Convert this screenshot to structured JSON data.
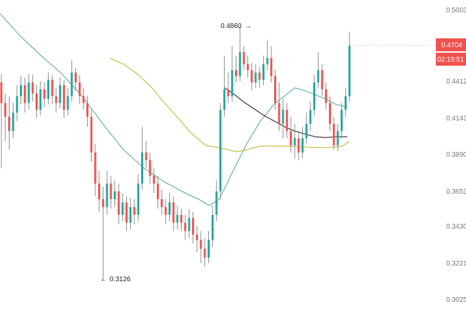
{
  "chart_data": {
    "type": "candlestick",
    "title": "",
    "xlabel": "",
    "ylabel": "",
    "y_ticks": [
      "0.5003",
      "0.4412",
      "0.4143",
      "0.3890",
      "0.3653",
      "0.3430",
      "0.3221",
      "0.3025"
    ],
    "y_tick_values": [
      0.5003,
      0.4412,
      0.4143,
      0.389,
      0.3653,
      0.343,
      0.3221,
      0.3025
    ],
    "grid": false,
    "colors": {
      "up": "#26a69a",
      "down": "#ef5350",
      "ma_fast": "#6fb8a8",
      "ma_slow": "#4a3a3a",
      "ma_mid": "#c9c24a",
      "price_label": "#ef5350"
    },
    "candles": [
      [
        0.44,
        0.447,
        0.38,
        0.425
      ],
      [
        0.425,
        0.432,
        0.398,
        0.415
      ],
      [
        0.415,
        0.43,
        0.392,
        0.405
      ],
      [
        0.405,
        0.425,
        0.4,
        0.418
      ],
      [
        0.418,
        0.438,
        0.412,
        0.43
      ],
      [
        0.43,
        0.445,
        0.424,
        0.438
      ],
      [
        0.438,
        0.444,
        0.418,
        0.425
      ],
      [
        0.425,
        0.447,
        0.42,
        0.44
      ],
      [
        0.44,
        0.446,
        0.426,
        0.432
      ],
      [
        0.432,
        0.438,
        0.414,
        0.42
      ],
      [
        0.42,
        0.441,
        0.416,
        0.435
      ],
      [
        0.435,
        0.44,
        0.422,
        0.428
      ],
      [
        0.428,
        0.448,
        0.424,
        0.442
      ],
      [
        0.442,
        0.446,
        0.424,
        0.43
      ],
      [
        0.43,
        0.436,
        0.418,
        0.425
      ],
      [
        0.425,
        0.444,
        0.421,
        0.438
      ],
      [
        0.438,
        0.442,
        0.414,
        0.42
      ],
      [
        0.42,
        0.436,
        0.416,
        0.43
      ],
      [
        0.43,
        0.458,
        0.426,
        0.448
      ],
      [
        0.448,
        0.452,
        0.434,
        0.44
      ],
      [
        0.44,
        0.446,
        0.424,
        0.43
      ],
      [
        0.43,
        0.436,
        0.42,
        0.425
      ],
      [
        0.425,
        0.43,
        0.408,
        0.415
      ],
      [
        0.415,
        0.42,
        0.384,
        0.39
      ],
      [
        0.39,
        0.396,
        0.362,
        0.37
      ],
      [
        0.37,
        0.378,
        0.352,
        0.36
      ],
      [
        0.36,
        0.368,
        0.3126,
        0.355
      ],
      [
        0.355,
        0.378,
        0.35,
        0.37
      ],
      [
        0.37,
        0.375,
        0.354,
        0.36
      ],
      [
        0.36,
        0.372,
        0.355,
        0.365
      ],
      [
        0.365,
        0.37,
        0.344,
        0.35
      ],
      [
        0.35,
        0.364,
        0.346,
        0.358
      ],
      [
        0.358,
        0.362,
        0.34,
        0.345
      ],
      [
        0.345,
        0.361,
        0.341,
        0.355
      ],
      [
        0.355,
        0.36,
        0.344,
        0.35
      ],
      [
        0.35,
        0.376,
        0.346,
        0.37
      ],
      [
        0.37,
        0.408,
        0.366,
        0.39
      ],
      [
        0.39,
        0.398,
        0.38,
        0.385
      ],
      [
        0.385,
        0.39,
        0.37,
        0.375
      ],
      [
        0.375,
        0.38,
        0.364,
        0.37
      ],
      [
        0.37,
        0.375,
        0.354,
        0.36
      ],
      [
        0.36,
        0.366,
        0.35,
        0.355
      ],
      [
        0.355,
        0.36,
        0.344,
        0.35
      ],
      [
        0.35,
        0.364,
        0.346,
        0.358
      ],
      [
        0.358,
        0.362,
        0.34,
        0.345
      ],
      [
        0.345,
        0.356,
        0.341,
        0.35
      ],
      [
        0.35,
        0.354,
        0.34,
        0.345
      ],
      [
        0.345,
        0.35,
        0.335,
        0.34
      ],
      [
        0.34,
        0.354,
        0.336,
        0.348
      ],
      [
        0.348,
        0.352,
        0.333,
        0.338
      ],
      [
        0.338,
        0.343,
        0.328,
        0.335
      ],
      [
        0.335,
        0.34,
        0.322,
        0.33
      ],
      [
        0.33,
        0.336,
        0.32,
        0.325
      ],
      [
        0.325,
        0.34,
        0.322,
        0.335
      ],
      [
        0.335,
        0.356,
        0.331,
        0.35
      ],
      [
        0.35,
        0.372,
        0.346,
        0.365
      ],
      [
        0.365,
        0.425,
        0.36,
        0.42
      ],
      [
        0.42,
        0.462,
        0.415,
        0.435
      ],
      [
        0.435,
        0.448,
        0.425,
        0.43
      ],
      [
        0.43,
        0.47,
        0.426,
        0.45
      ],
      [
        0.45,
        0.462,
        0.44,
        0.445
      ],
      [
        0.445,
        0.486,
        0.441,
        0.465
      ],
      [
        0.465,
        0.47,
        0.45,
        0.455
      ],
      [
        0.455,
        0.462,
        0.444,
        0.45
      ],
      [
        0.45,
        0.456,
        0.434,
        0.44
      ],
      [
        0.44,
        0.455,
        0.436,
        0.448
      ],
      [
        0.448,
        0.453,
        0.436,
        0.442
      ],
      [
        0.442,
        0.462,
        0.438,
        0.455
      ],
      [
        0.455,
        0.475,
        0.45,
        0.46
      ],
      [
        0.46,
        0.47,
        0.44,
        0.445
      ],
      [
        0.445,
        0.45,
        0.42,
        0.425
      ],
      [
        0.425,
        0.44,
        0.405,
        0.41
      ],
      [
        0.41,
        0.428,
        0.4,
        0.42
      ],
      [
        0.42,
        0.425,
        0.4,
        0.405
      ],
      [
        0.405,
        0.415,
        0.39,
        0.395
      ],
      [
        0.395,
        0.41,
        0.386,
        0.4
      ],
      [
        0.4,
        0.405,
        0.385,
        0.39
      ],
      [
        0.39,
        0.408,
        0.386,
        0.4
      ],
      [
        0.4,
        0.418,
        0.396,
        0.41
      ],
      [
        0.41,
        0.426,
        0.405,
        0.42
      ],
      [
        0.42,
        0.446,
        0.415,
        0.44
      ],
      [
        0.44,
        0.465,
        0.436,
        0.45
      ],
      [
        0.45,
        0.455,
        0.43,
        0.435
      ],
      [
        0.435,
        0.44,
        0.42,
        0.425
      ],
      [
        0.425,
        0.43,
        0.405,
        0.41
      ],
      [
        0.41,
        0.415,
        0.392,
        0.395
      ],
      [
        0.395,
        0.41,
        0.391,
        0.405
      ],
      [
        0.405,
        0.425,
        0.4,
        0.42
      ],
      [
        0.42,
        0.436,
        0.415,
        0.43
      ],
      [
        0.43,
        0.482,
        0.426,
        0.4704
      ]
    ],
    "moving_averages": [
      {
        "color": "#6fb8a8",
        "points": [
          [
            0,
            0.497
          ],
          [
            30,
            0.478
          ],
          [
            60,
            0.462
          ],
          [
            90,
            0.447
          ],
          [
            120,
            0.43
          ],
          [
            150,
            0.41
          ],
          [
            180,
            0.392
          ],
          [
            210,
            0.38
          ],
          [
            240,
            0.371
          ],
          [
            270,
            0.364
          ],
          [
            290,
            0.36
          ],
          [
            305,
            0.356
          ],
          [
            320,
            0.36
          ],
          [
            340,
            0.378
          ],
          [
            360,
            0.396
          ],
          [
            380,
            0.412
          ],
          [
            400,
            0.424
          ],
          [
            420,
            0.432
          ],
          [
            430,
            0.436
          ],
          [
            445,
            0.434
          ],
          [
            460,
            0.431
          ],
          [
            475,
            0.428
          ],
          [
            490,
            0.424
          ],
          [
            507,
            0.422
          ]
        ]
      },
      {
        "color": "#4a3a3a",
        "points": [
          [
            48,
            0.436
          ],
          [
            60,
            0.432
          ],
          [
            75,
            0.426
          ],
          [
            90,
            0.421
          ],
          [
            105,
            0.416
          ],
          [
            120,
            0.412
          ],
          [
            135,
            0.408
          ],
          [
            150,
            0.405
          ],
          [
            165,
            0.403
          ],
          [
            180,
            0.401
          ],
          [
            195,
            0.4005
          ],
          [
            210,
            0.401
          ],
          [
            227,
            0.401
          ]
        ]
      },
      {
        "color": "#c9c24a",
        "points": [
          [
            0,
            0.46
          ],
          [
            20,
            0.455
          ],
          [
            40,
            0.447
          ],
          [
            60,
            0.437
          ],
          [
            80,
            0.425
          ],
          [
            100,
            0.414
          ],
          [
            120,
            0.403
          ],
          [
            140,
            0.395
          ],
          [
            160,
            0.3935
          ],
          [
            185,
            0.3905
          ],
          [
            200,
            0.392
          ],
          [
            220,
            0.3945
          ],
          [
            260,
            0.3945
          ],
          [
            300,
            0.3935
          ],
          [
            320,
            0.3935
          ],
          [
            340,
            0.3945
          ],
          [
            350,
            0.398
          ]
        ]
      }
    ],
    "annotations": {
      "high_label": "0.4860",
      "low_label": "0.3126"
    },
    "last_price": "0.4704",
    "countdown": "02:19:51"
  }
}
